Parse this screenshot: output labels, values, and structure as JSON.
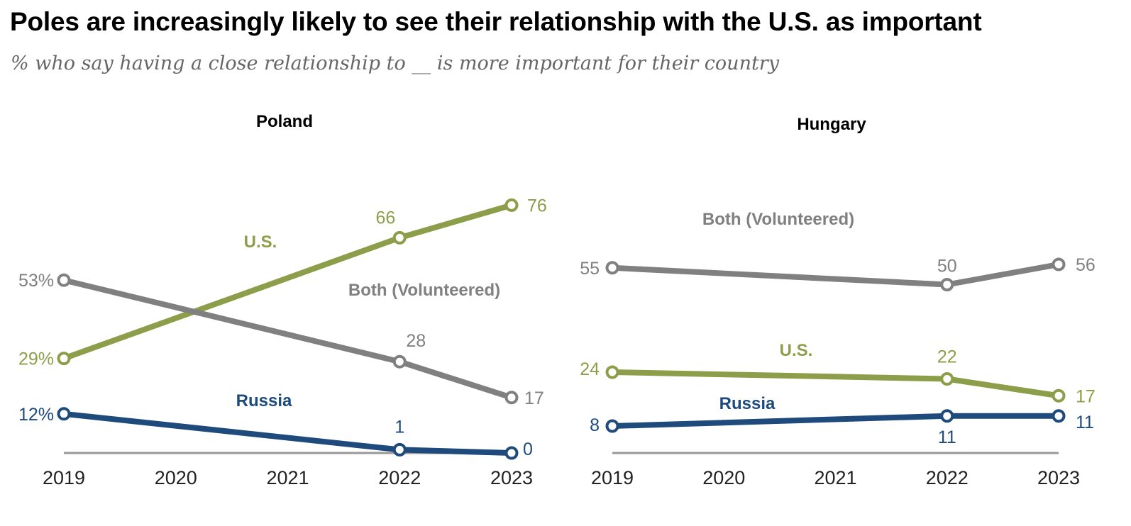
{
  "title": "Poles are increasingly likely to see their relationship with the U.S. as important",
  "subtitle": "% who say having a close relationship to __ is more important for their country",
  "colors": {
    "us": "#8c9e49",
    "both": "#808080",
    "russia": "#1f4a7c",
    "axis": "#999999"
  },
  "chart_data": [
    {
      "type": "line",
      "title": "Poland",
      "x": [
        2019,
        2020,
        2021,
        2022,
        2023
      ],
      "series": [
        {
          "name": "U.S.",
          "points": [
            [
              2019,
              29
            ],
            [
              2022,
              66
            ],
            [
              2023,
              76
            ]
          ],
          "labels": [
            "29%",
            "66",
            "76"
          ]
        },
        {
          "name": "Both (Volunteered)",
          "points": [
            [
              2019,
              53
            ],
            [
              2022,
              28
            ],
            [
              2023,
              17
            ]
          ],
          "labels": [
            "53%",
            "28",
            "17"
          ]
        },
        {
          "name": "Russia",
          "points": [
            [
              2019,
              12
            ],
            [
              2022,
              1
            ],
            [
              2023,
              0
            ]
          ],
          "labels": [
            "12%",
            "1",
            "0"
          ]
        }
      ]
    },
    {
      "type": "line",
      "title": "Hungary",
      "x": [
        2019,
        2020,
        2021,
        2022,
        2023
      ],
      "series": [
        {
          "name": "Both (Volunteered)",
          "points": [
            [
              2019,
              55
            ],
            [
              2022,
              50
            ],
            [
              2023,
              56
            ]
          ],
          "labels": [
            "55",
            "50",
            "56"
          ]
        },
        {
          "name": "U.S.",
          "points": [
            [
              2019,
              24
            ],
            [
              2022,
              22
            ],
            [
              2023,
              17
            ]
          ],
          "labels": [
            "24",
            "22",
            "17"
          ]
        },
        {
          "name": "Russia",
          "points": [
            [
              2019,
              8
            ],
            [
              2022,
              11
            ],
            [
              2023,
              11
            ]
          ],
          "labels": [
            "8",
            "11",
            "11"
          ]
        }
      ]
    }
  ]
}
